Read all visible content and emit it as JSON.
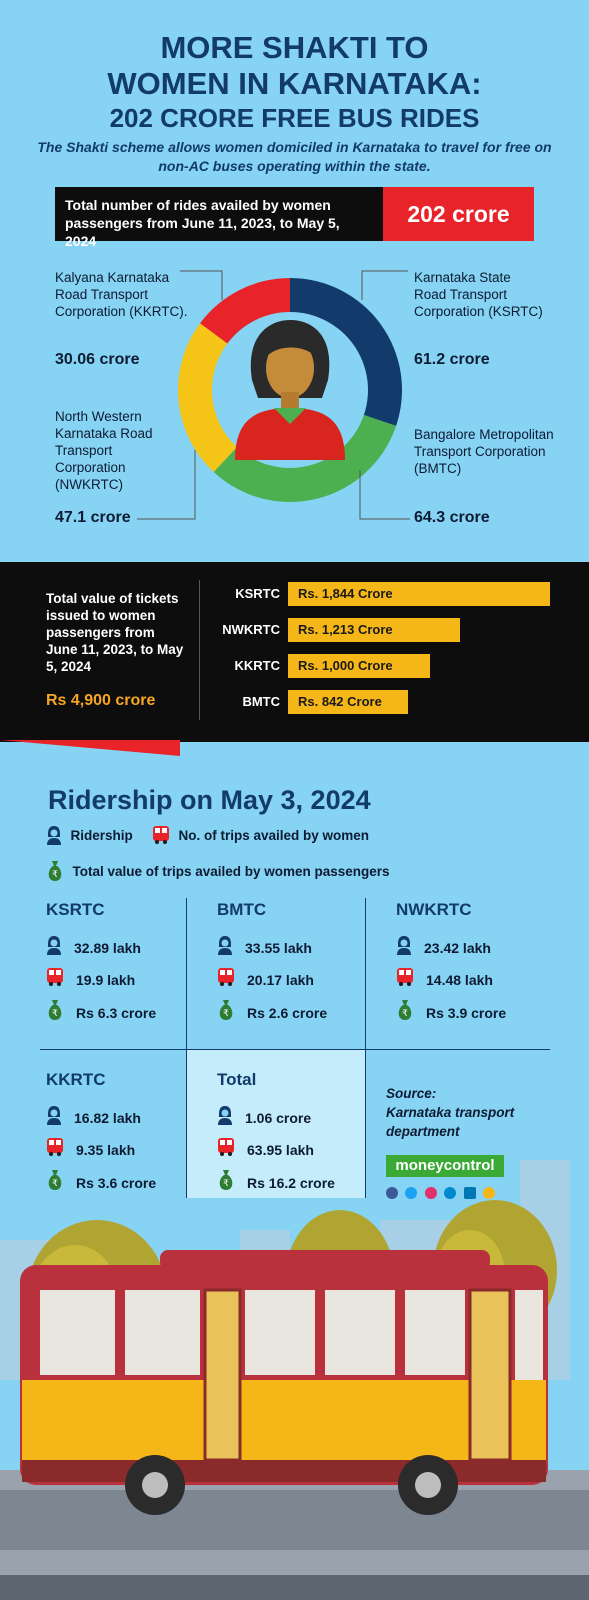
{
  "header": {
    "line1": "MORE SHAKTI TO",
    "line2": "WOMEN IN KARNATAKA:",
    "line3": "202 CRORE FREE BUS RIDES",
    "subtitle": "The Shakti scheme allows women domiciled in Karnataka to travel for free on non-AC buses operating within the state."
  },
  "total_rides": {
    "label": "Total number of rides availed by women passengers from June 11, 2023, to May 5, 2024",
    "value": "202 crore"
  },
  "donut_labels": {
    "kkrtc_name": "Kalyana Karnataka Road Transport Corporation (KKRTC).",
    "kkrtc_value": "30.06 crore",
    "ksrtc_name": "Karnataka State Road Transport Corporation (KSRTC)",
    "ksrtc_value": "61.2 crore",
    "nwkrtc_name": "North Western Karnataka Road Transport Corporation (NWKRTC)",
    "nwkrtc_value": "47.1 crore",
    "bmtc_name": "Bangalore Metropolitan Transport Corporation (BMTC)",
    "bmtc_value": "64.3 crore"
  },
  "tickets": {
    "label": "Total value of tickets issued to women passengers from June 11, 2023, to May 5, 2024",
    "total": "Rs 4,900 crore"
  },
  "ridership": {
    "title": "Ridership on May 3, 2024",
    "legend_ridership": "Ridership",
    "legend_trips": "No. of trips availed by women",
    "legend_value": "Total value of trips availed by women passengers",
    "cells": [
      {
        "name": "KSRTC",
        "ridership": "32.89 lakh",
        "trips": "19.9 lakh",
        "value": "Rs 6.3 crore"
      },
      {
        "name": "BMTC",
        "ridership": "33.55 lakh",
        "trips": "20.17 lakh",
        "value": "Rs 2.6 crore"
      },
      {
        "name": "NWKRTC",
        "ridership": "23.42 lakh",
        "trips": "14.48 lakh",
        "value": "Rs 3.9 crore"
      },
      {
        "name": "KKRTC",
        "ridership": "16.82 lakh",
        "trips": "9.35 lakh",
        "value": "Rs 3.6 crore"
      },
      {
        "name": "Total",
        "ridership": "1.06 crore",
        "trips": "63.95 lakh",
        "value": "Rs 16.2 crore"
      }
    ]
  },
  "source": {
    "label": "Source:",
    "text": "Karnataka transport department",
    "brand": "moneycontrol"
  },
  "colors": {
    "background": "#86d3f3",
    "navy": "#123a6b",
    "red": "#e8232a",
    "yellow": "#f5b617",
    "green": "#4caf50",
    "donut_ksrtc": "#123a6b",
    "donut_bmtc": "#4caf50",
    "donut_nwkrtc": "#f5c518",
    "donut_kkrtc": "#e8232a"
  },
  "chart_data": [
    {
      "type": "pie",
      "categories": [
        "KSRTC",
        "BMTC",
        "NWKRTC",
        "KKRTC"
      ],
      "values": [
        61.2,
        64.3,
        47.1,
        30.06
      ],
      "unit": "crore"
    },
    {
      "type": "bar",
      "categories": [
        "KSRTC",
        "NWKRTC",
        "KKRTC",
        "BMTC"
      ],
      "values": [
        1844,
        1213,
        1000,
        842
      ],
      "labels": [
        "Rs. 1,844 Crore",
        "Rs. 1,213 Crore",
        "Rs. 1,000 Crore",
        "Rs. 842 Crore"
      ]
    }
  ]
}
